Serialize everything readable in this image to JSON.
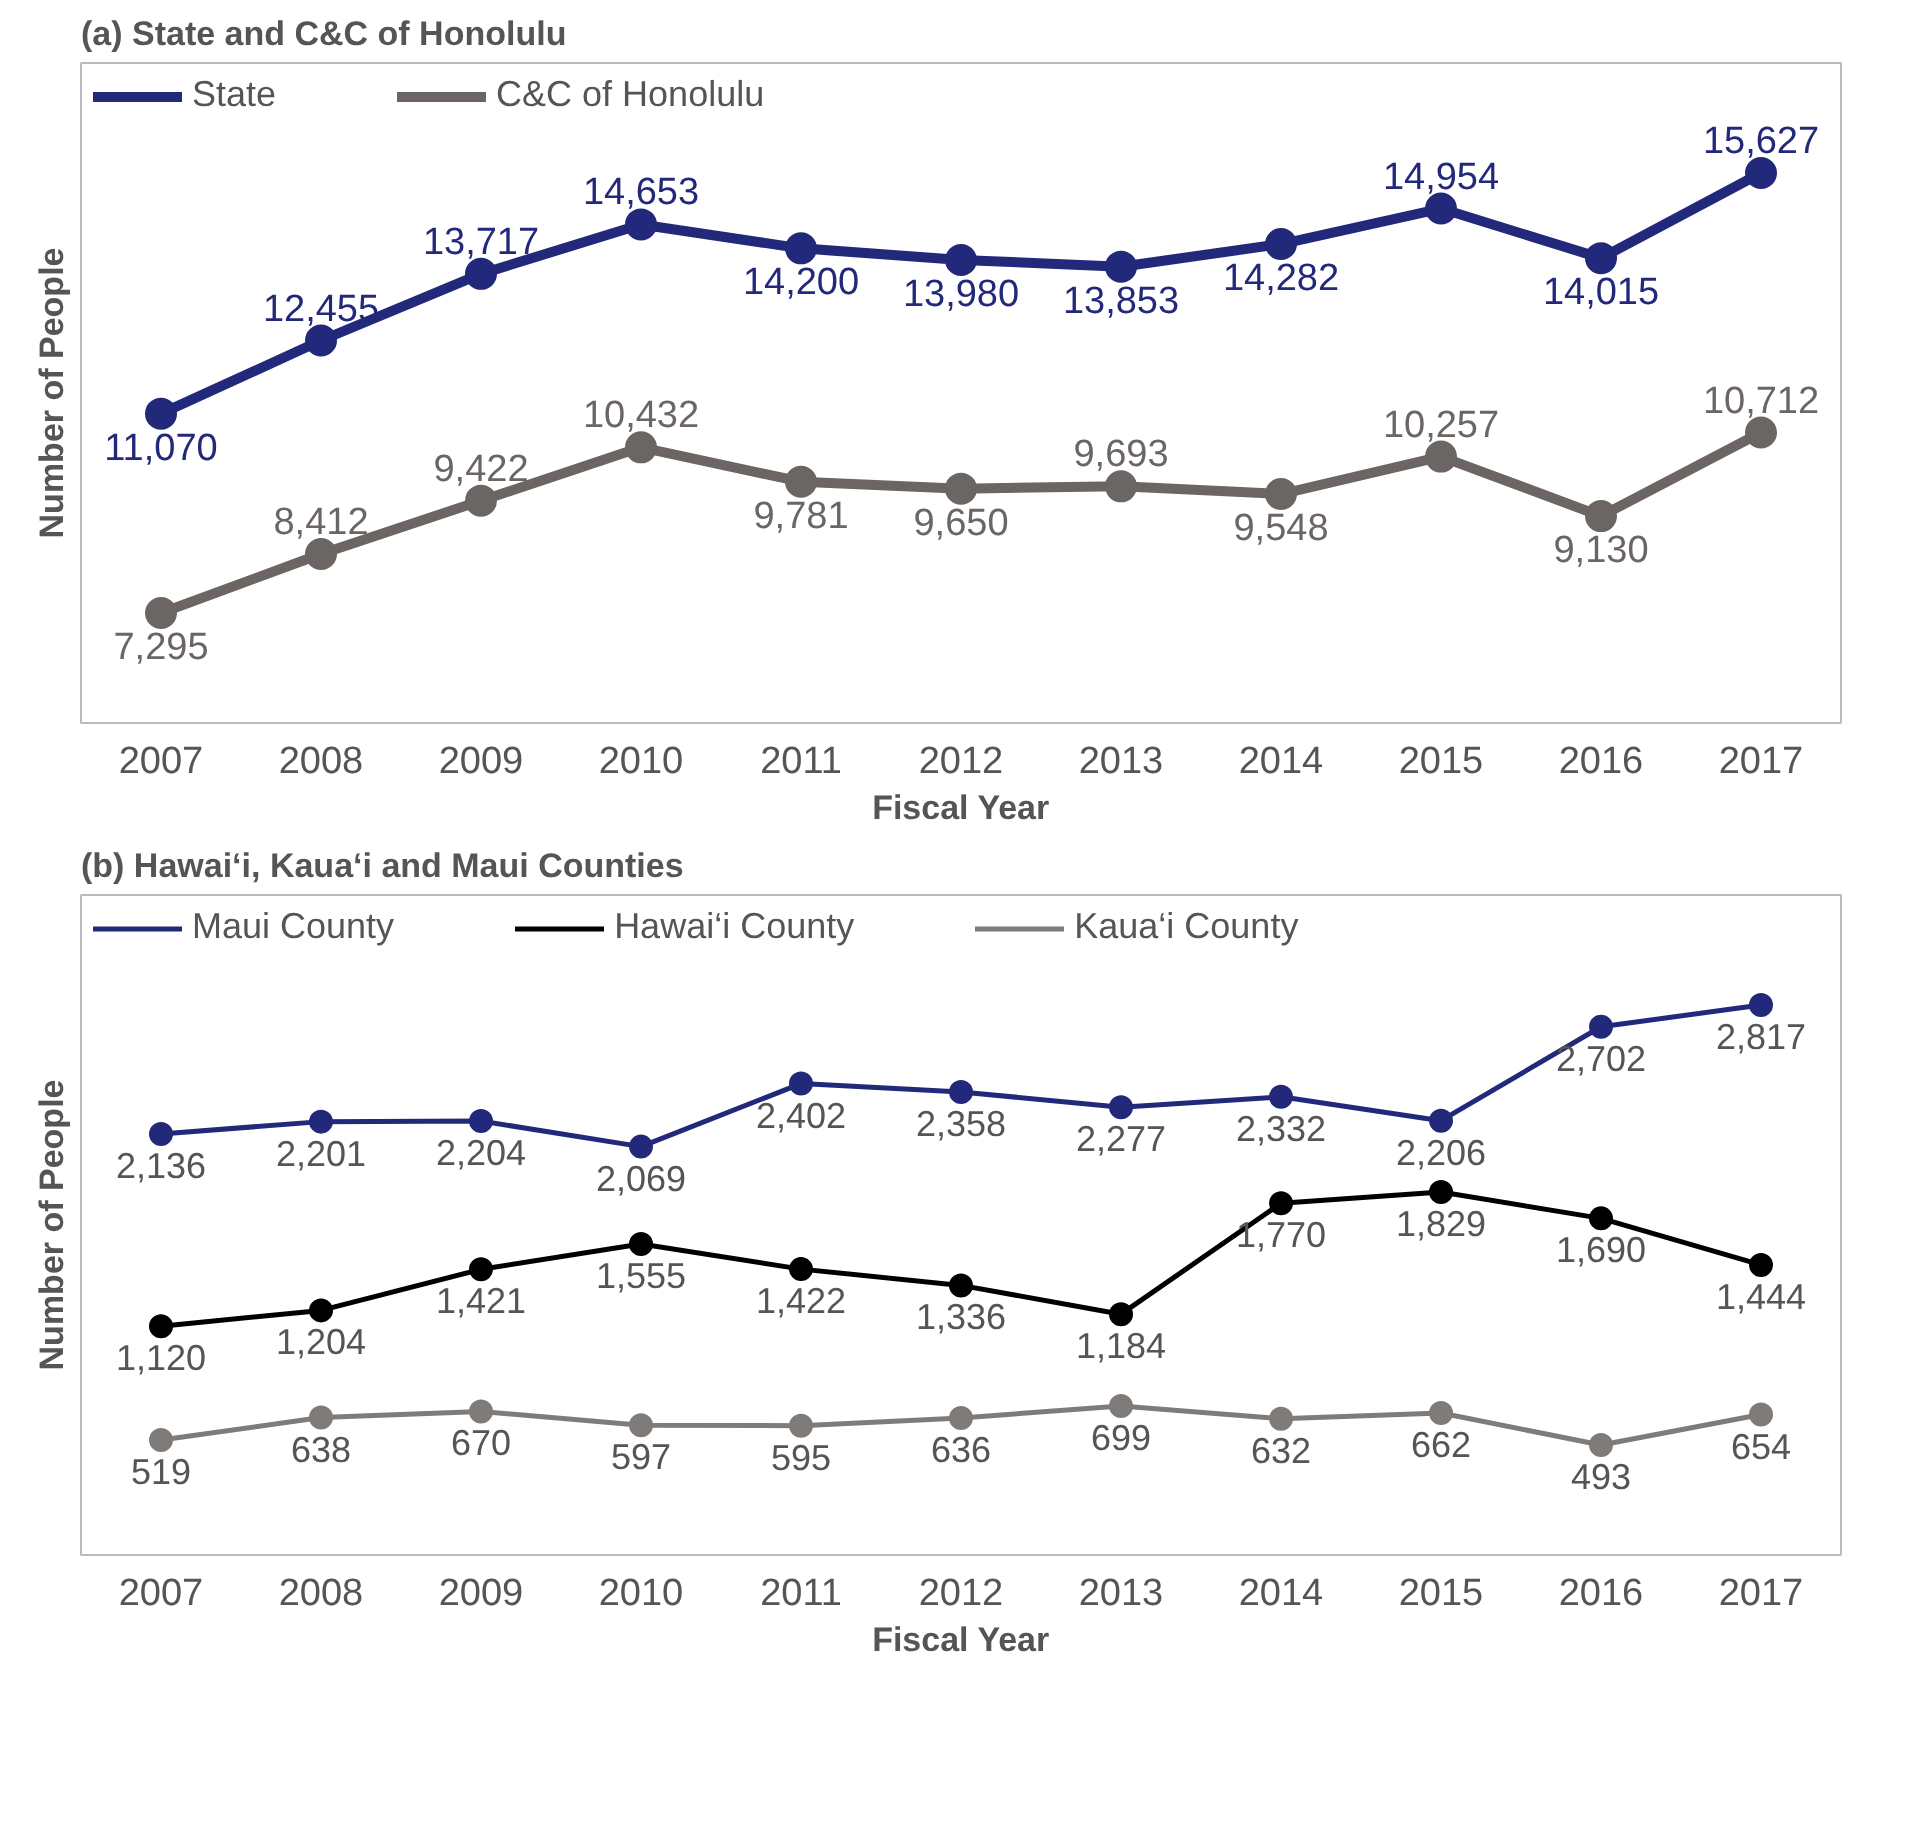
{
  "chart_data": [
    {
      "type": "line",
      "title": "(a) State and C&C of Honolulu",
      "xlabel": "Fiscal Year",
      "ylabel": "Number of People",
      "categories": [
        "2007",
        "2008",
        "2009",
        "2010",
        "2011",
        "2012",
        "2013",
        "2014",
        "2015",
        "2016",
        "2017"
      ],
      "series": [
        {
          "name": "State",
          "color": "#23297a",
          "values": [
            11070,
            12455,
            13717,
            14653,
            14200,
            13980,
            13853,
            14282,
            14954,
            14015,
            15627
          ],
          "value_labels": [
            "11,070",
            "12,455",
            "13,717",
            "14,653",
            "14,200",
            "13,980",
            "13,853",
            "14,282",
            "14,954",
            "14,015",
            "15,627"
          ]
        },
        {
          "name": "C&C of Honolulu",
          "color": "#6b6664",
          "values": [
            7295,
            8412,
            9422,
            10432,
            9781,
            9650,
            9693,
            9548,
            10257,
            9130,
            10712
          ],
          "value_labels": [
            "7,295",
            "8,412",
            "9,422",
            "10,432",
            "9,781",
            "9,650",
            "9,693",
            "9,548",
            "10,257",
            "9,130",
            "10,712"
          ]
        }
      ],
      "tick_labels": "x",
      "legend": "top left",
      "marker": "circle",
      "line_style": "solid"
    },
    {
      "type": "line",
      "title": "(b) Hawai‘i, Kaua‘i and Maui Counties",
      "xlabel": "Fiscal Year",
      "ylabel": "Number of People",
      "categories": [
        "2007",
        "2008",
        "2009",
        "2010",
        "2011",
        "2012",
        "2013",
        "2014",
        "2015",
        "2016",
        "2017"
      ],
      "series": [
        {
          "name": "Maui County",
          "color": "#23297a",
          "values": [
            2136,
            2201,
            2204,
            2069,
            2402,
            2358,
            2277,
            2332,
            2206,
            2702,
            2817
          ],
          "value_labels": [
            "2,136",
            "2,201",
            "2,204",
            "2,069",
            "2,402",
            "2,358",
            "2,277",
            "2,332",
            "2,206",
            "2,702",
            "2,817"
          ]
        },
        {
          "name": "Hawai‘i County",
          "color": "#000000",
          "values": [
            1120,
            1204,
            1421,
            1555,
            1422,
            1336,
            1184,
            1770,
            1829,
            1690,
            1444
          ],
          "value_labels": [
            "1,120",
            "1,204",
            "1,421",
            "1,555",
            "1,422",
            "1,336",
            "1,184",
            "1,770",
            "1,829",
            "1,690",
            "1,444"
          ]
        },
        {
          "name": "Kaua‘i County",
          "color": "#7f7b79",
          "values": [
            519,
            638,
            670,
            597,
            595,
            636,
            699,
            632,
            662,
            493,
            654
          ],
          "value_labels": [
            "519",
            "638",
            "670",
            "597",
            "595",
            "636",
            "699",
            "632",
            "662",
            "493",
            "654"
          ]
        }
      ],
      "tick_labels": "x",
      "legend": "top left",
      "marker": "circle",
      "line_style": "solid"
    }
  ]
}
